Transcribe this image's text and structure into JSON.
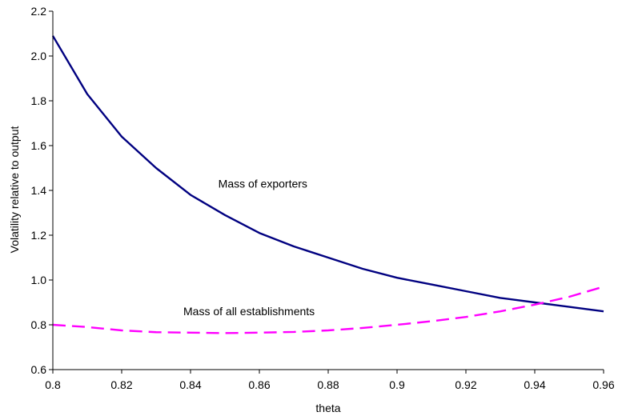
{
  "chart_data": {
    "type": "line",
    "title": "",
    "xlabel": "theta",
    "ylabel": "Volatility relative to output",
    "xlim": [
      0.8,
      0.96
    ],
    "ylim": [
      0.6,
      2.2
    ],
    "xticks": [
      "0.8",
      "0.82",
      "0.84",
      "0.86",
      "0.88",
      "0.9",
      "0.92",
      "0.94",
      "0.96"
    ],
    "yticks": [
      "0.6",
      "0.8",
      "1.0",
      "1.2",
      "1.4",
      "1.6",
      "1.8",
      "2.0",
      "2.2"
    ],
    "grid": false,
    "legend": "none",
    "series": [
      {
        "color": "#000080",
        "style": "solid",
        "x": [
          0.8,
          0.81,
          0.82,
          0.83,
          0.84,
          0.85,
          0.86,
          0.87,
          0.88,
          0.89,
          0.9,
          0.91,
          0.92,
          0.93,
          0.94,
          0.95,
          0.96
        ],
        "y": [
          2.09,
          1.83,
          1.64,
          1.5,
          1.38,
          1.29,
          1.21,
          1.15,
          1.1,
          1.05,
          1.01,
          0.98,
          0.95,
          0.92,
          0.9,
          0.88,
          0.86
        ]
      },
      {
        "color": "#FF00FF",
        "style": "dashed",
        "x": [
          0.8,
          0.81,
          0.82,
          0.83,
          0.84,
          0.85,
          0.86,
          0.87,
          0.88,
          0.89,
          0.9,
          0.91,
          0.92,
          0.93,
          0.94,
          0.95,
          0.96
        ],
        "y": [
          0.8,
          0.79,
          0.775,
          0.767,
          0.765,
          0.763,
          0.765,
          0.768,
          0.775,
          0.786,
          0.8,
          0.816,
          0.835,
          0.86,
          0.89,
          0.925,
          0.97
        ]
      }
    ],
    "annotations": [
      {
        "text": "Mass of exporters",
        "x": 0.861,
        "y": 1.43
      },
      {
        "text": "Mass of all establishments",
        "x": 0.857,
        "y": 0.86
      }
    ]
  }
}
